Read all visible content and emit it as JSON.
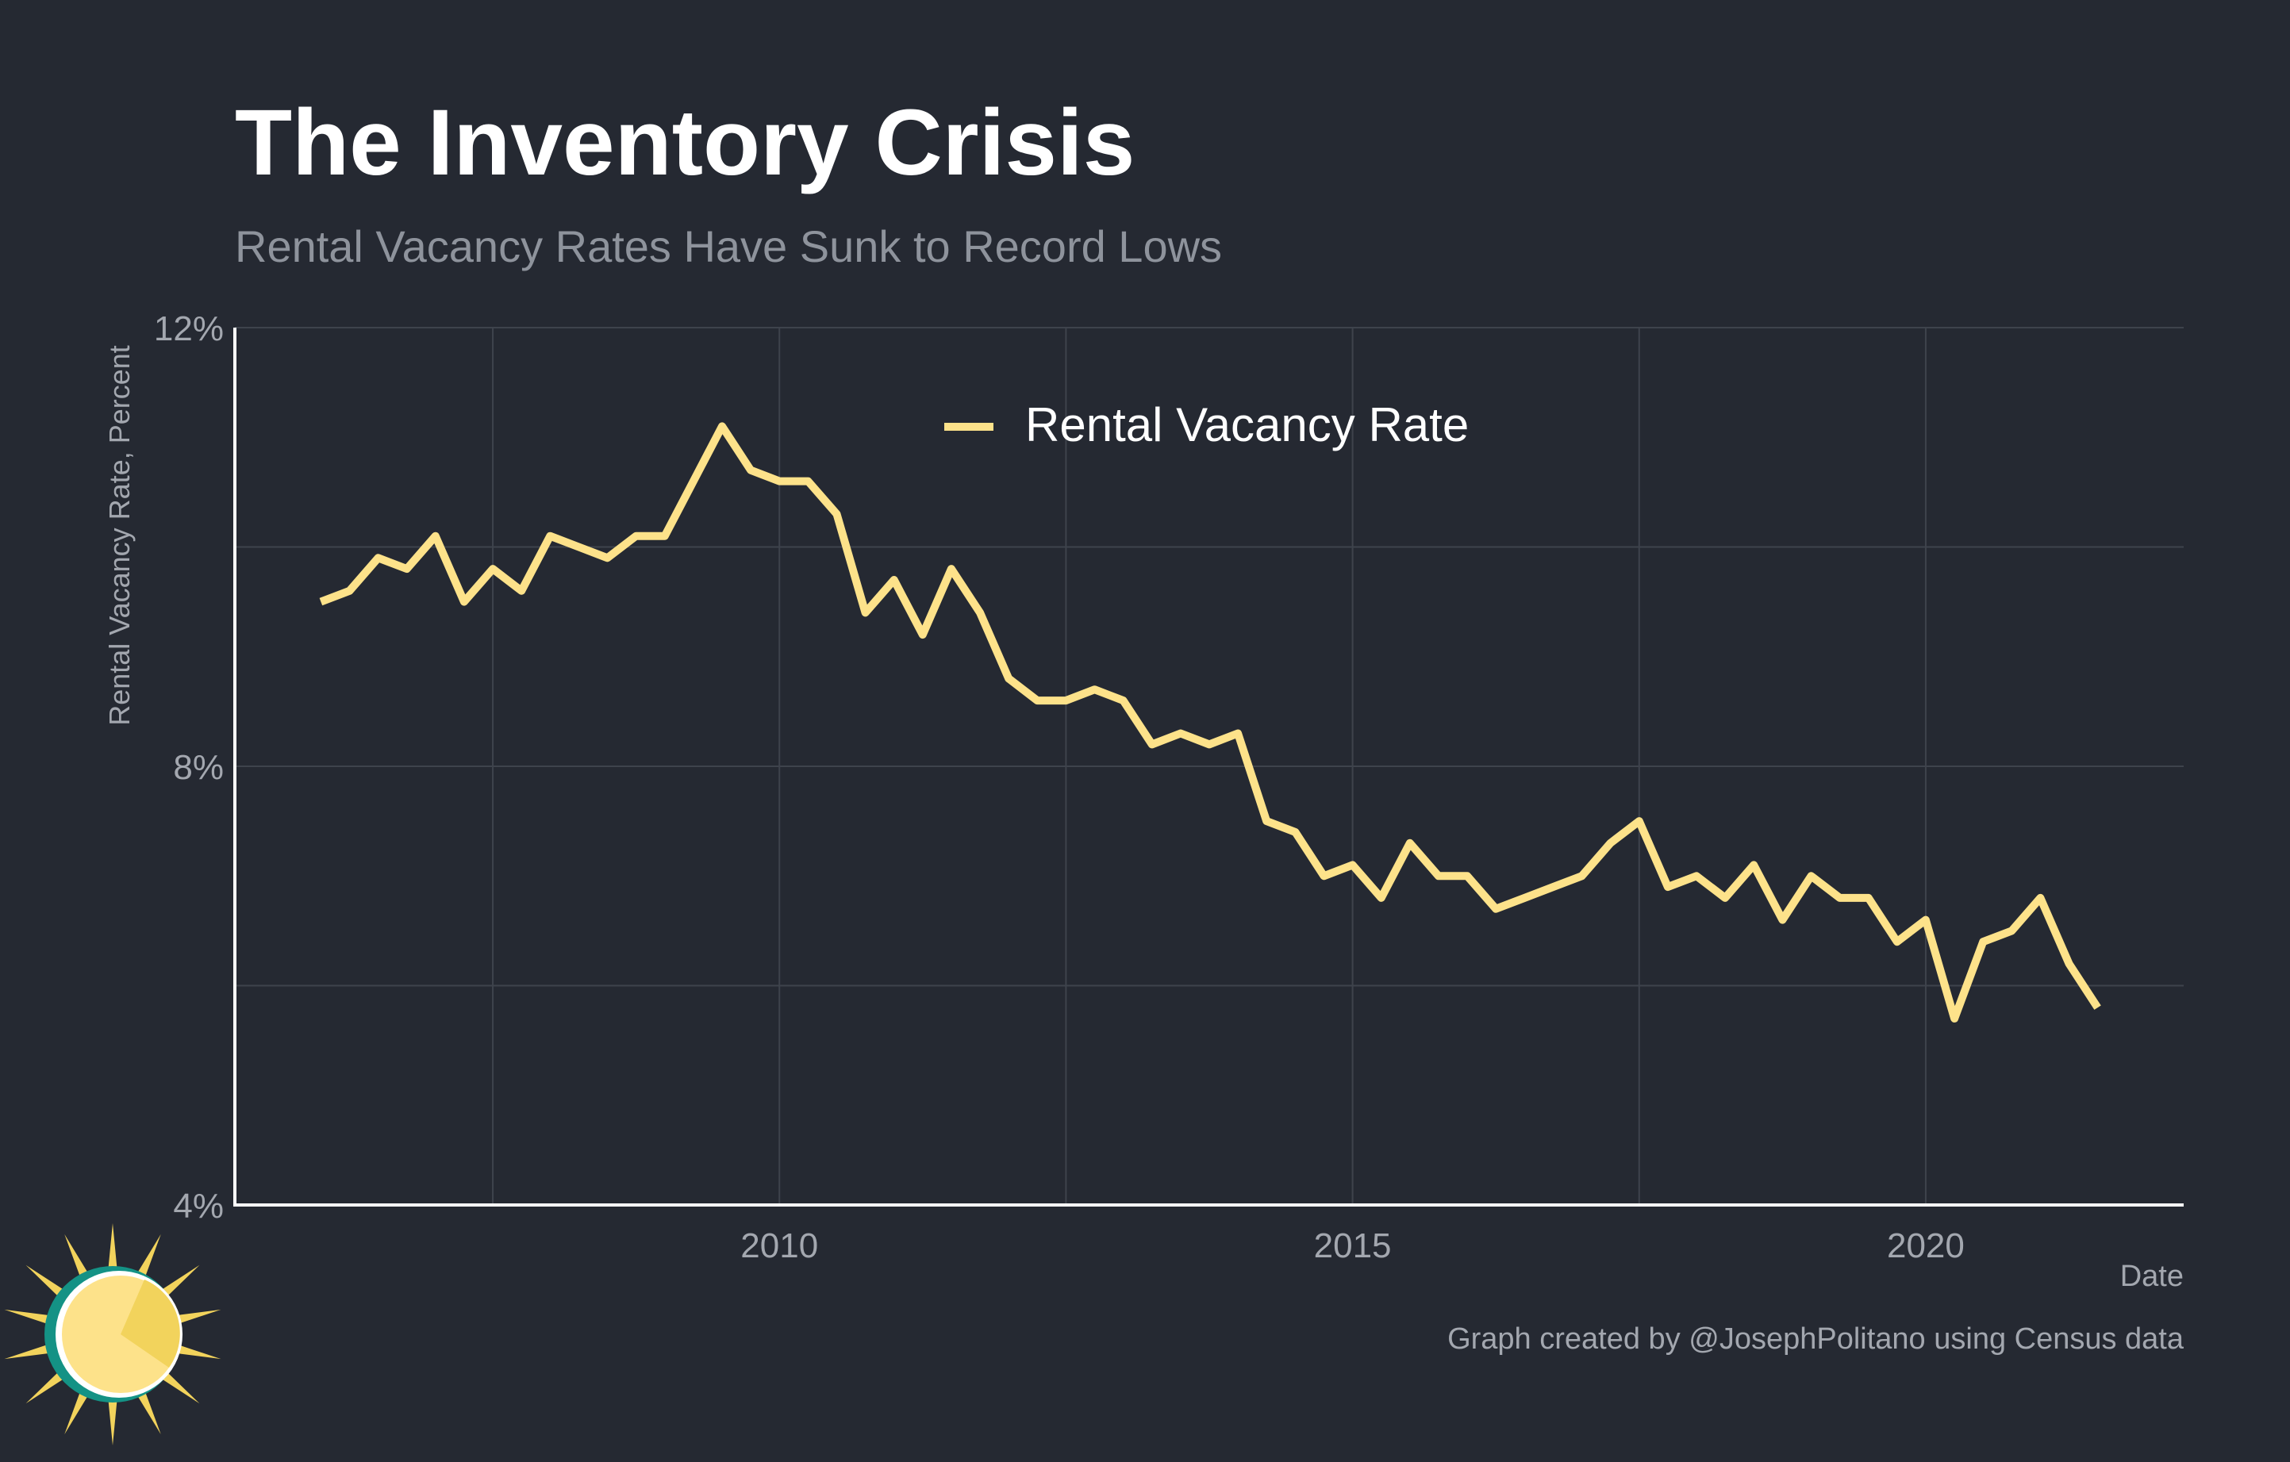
{
  "chart_data": {
    "type": "line",
    "title": "The Inventory Crisis",
    "subtitle": "Rental Vacancy Rates Have Sunk to Record Lows",
    "xlabel": "Date",
    "ylabel": "Rental Vacancy Rate, Percent",
    "caption": "Graph created by @JosephPolitano using Census data",
    "xlim": [
      2005.25,
      2022.25
    ],
    "ylim": [
      4,
      12
    ],
    "x_ticks": [
      2010,
      2015,
      2020
    ],
    "x_tick_labels": [
      "2010",
      "2015",
      "2020"
    ],
    "y_ticks": [
      4,
      8,
      12
    ],
    "y_tick_labels": [
      "4%",
      "8%",
      "12%"
    ],
    "y_gridlines": [
      4,
      6,
      8,
      10,
      12
    ],
    "x_gridlines": [
      2007.5,
      2010,
      2012.5,
      2015,
      2017.5,
      2020
    ],
    "grid": true,
    "legend_position": "top-center",
    "series": [
      {
        "name": "Rental Vacancy Rate",
        "color": "#FDE28A",
        "x": [
          2006.0,
          2006.25,
          2006.5,
          2006.75,
          2007.0,
          2007.25,
          2007.5,
          2007.75,
          2008.0,
          2008.25,
          2008.5,
          2008.75,
          2009.0,
          2009.25,
          2009.5,
          2009.75,
          2010.0,
          2010.25,
          2010.5,
          2010.75,
          2011.0,
          2011.25,
          2011.5,
          2011.75,
          2012.0,
          2012.25,
          2012.5,
          2012.75,
          2013.0,
          2013.25,
          2013.5,
          2013.75,
          2014.0,
          2014.25,
          2014.5,
          2014.75,
          2015.0,
          2015.25,
          2015.5,
          2015.75,
          2016.0,
          2016.25,
          2016.5,
          2016.75,
          2017.0,
          2017.25,
          2017.5,
          2017.75,
          2018.0,
          2018.25,
          2018.5,
          2018.75,
          2019.0,
          2019.25,
          2019.5,
          2019.75,
          2020.0,
          2020.25,
          2020.5,
          2020.75,
          2021.0,
          2021.25,
          2021.5
        ],
        "values": [
          9.5,
          9.6,
          9.9,
          9.8,
          10.1,
          9.5,
          9.8,
          9.6,
          10.1,
          10.0,
          9.9,
          10.1,
          10.1,
          10.6,
          11.1,
          10.7,
          10.6,
          10.6,
          10.3,
          9.4,
          9.7,
          9.2,
          9.8,
          9.4,
          8.8,
          8.6,
          8.6,
          8.7,
          8.6,
          8.2,
          8.3,
          8.2,
          8.3,
          7.5,
          7.4,
          7.0,
          7.1,
          6.8,
          7.3,
          7.0,
          7.0,
          6.7,
          6.8,
          6.9,
          7.0,
          7.3,
          7.5,
          6.9,
          7.0,
          6.8,
          7.1,
          6.6,
          7.0,
          6.8,
          6.8,
          6.4,
          6.6,
          5.7,
          6.4,
          6.5,
          6.8,
          6.2,
          5.8
        ]
      }
    ]
  },
  "colors": {
    "background": "#252932",
    "title": "#FFFFFF",
    "subtitle": "#8E939C",
    "axis_text": "#A3A7AF",
    "grid": "#3E434C",
    "axis_line": "#FFFFFF",
    "line": "#FDE28A"
  },
  "logo": {
    "icon": "sun-logo-icon"
  }
}
